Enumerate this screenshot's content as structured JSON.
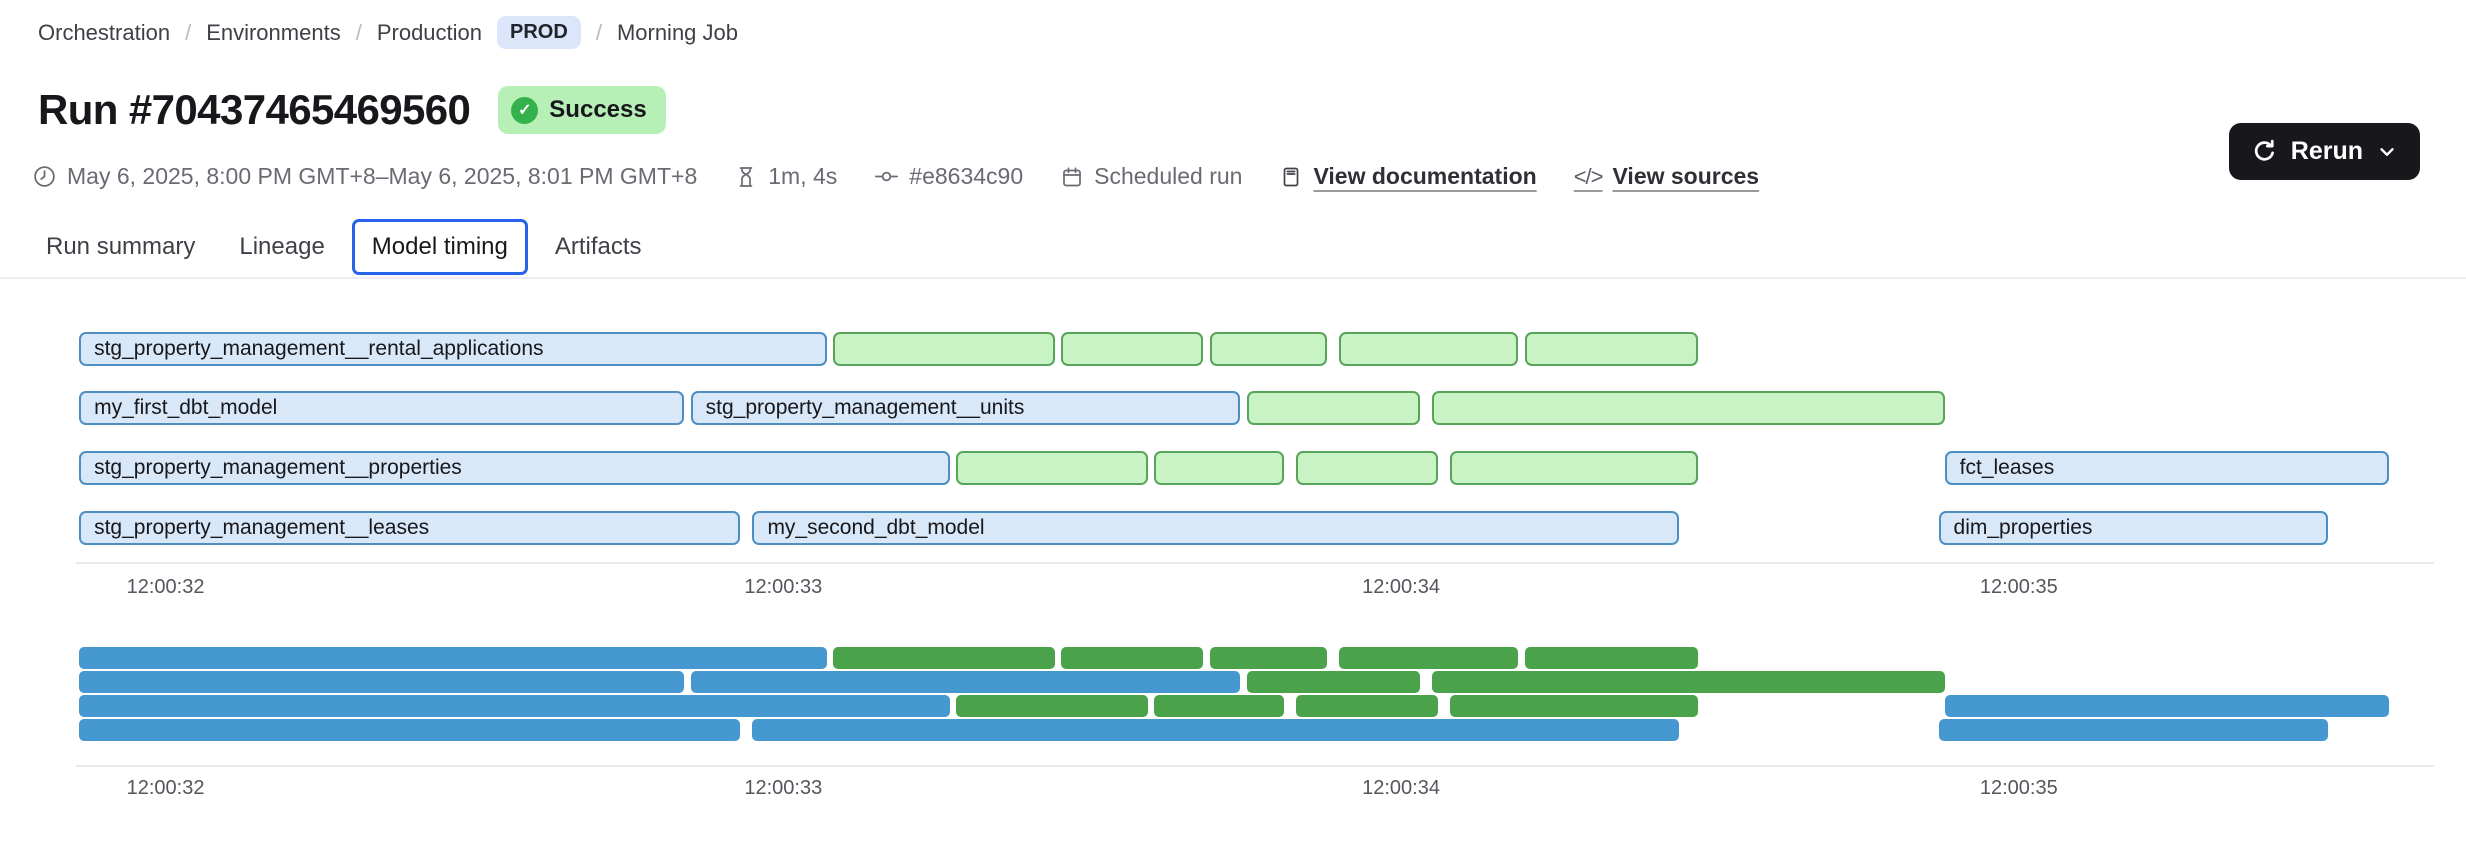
{
  "breadcrumb": {
    "separator": "/",
    "items": [
      "Orchestration",
      "Environments",
      "Production",
      "Morning Job"
    ],
    "env_badge": "PROD"
  },
  "header": {
    "title": "Run #70437465469560",
    "status_badge": "Success",
    "rerun_label": "Rerun"
  },
  "meta": {
    "time_range": "May 6, 2025, 8:00 PM GMT+8–May 6, 2025, 8:01 PM GMT+8",
    "duration": "1m, 4s",
    "commit": "#e8634c90",
    "trigger": "Scheduled run",
    "docs_link": "View documentation",
    "sources_link": "View sources",
    "code_glyph": "</>"
  },
  "tabs": {
    "items": [
      {
        "label": "Run summary",
        "active": false
      },
      {
        "label": "Lineage",
        "active": false
      },
      {
        "label": "Model timing",
        "active": true
      },
      {
        "label": "Artifacts",
        "active": false
      }
    ]
  },
  "colors": {
    "accent_blue": "#2563eb",
    "env_badge_bg": "#dce6fb",
    "success_badge_bg": "#b6f0b6",
    "success_check": "#35b14b",
    "rerun_button_bg": "#17171c",
    "bar_blue_fill": "#d8e8f8",
    "bar_blue_border": "#4d8fc2",
    "bar_green_fill": "#c9f2c5",
    "bar_green_border": "#57a45a",
    "bar_blue_solid": "#4698d0",
    "bar_green_solid": "#4aa24a"
  },
  "chart_data": {
    "type": "gantt",
    "title": "Model timing",
    "time_unit": "seconds after 12:00:00",
    "has_secondary_overview": true,
    "x_axis": {
      "min": 31.855,
      "max": 35.63,
      "ticks": [
        {
          "t": 32,
          "label": "12:00:32"
        },
        {
          "t": 33,
          "label": "12:00:33"
        },
        {
          "t": 34,
          "label": "12:00:34"
        },
        {
          "t": 35,
          "label": "12:00:35"
        }
      ]
    },
    "rows": [
      {
        "bars": [
          {
            "label": "stg_property_management__rental_applications",
            "color": "blue",
            "start": 31.86,
            "end": 33.07
          },
          {
            "color": "green",
            "start": 33.08,
            "end": 33.44
          },
          {
            "color": "green",
            "start": 33.45,
            "end": 33.68
          },
          {
            "color": "green",
            "start": 33.69,
            "end": 33.88
          },
          {
            "color": "green",
            "start": 33.9,
            "end": 34.19
          },
          {
            "color": "green",
            "start": 34.2,
            "end": 34.48
          }
        ]
      },
      {
        "bars": [
          {
            "label": "my_first_dbt_model",
            "color": "blue",
            "start": 31.86,
            "end": 32.84
          },
          {
            "label": "stg_property_management__units",
            "color": "blue",
            "start": 32.85,
            "end": 33.74
          },
          {
            "color": "green",
            "start": 33.75,
            "end": 34.03
          },
          {
            "color": "green",
            "start": 34.05,
            "end": 34.88
          }
        ]
      },
      {
        "bars": [
          {
            "label": "stg_property_management__properties",
            "color": "blue",
            "start": 31.86,
            "end": 33.27
          },
          {
            "color": "green",
            "start": 33.28,
            "end": 33.59
          },
          {
            "color": "green",
            "start": 33.6,
            "end": 33.81
          },
          {
            "color": "green",
            "start": 33.83,
            "end": 34.06
          },
          {
            "color": "green",
            "start": 34.08,
            "end": 34.48
          },
          {
            "label": "fct_leases",
            "color": "blue",
            "start": 34.88,
            "end": 35.6
          }
        ]
      },
      {
        "bars": [
          {
            "label": "stg_property_management__leases",
            "color": "blue",
            "start": 31.86,
            "end": 32.93
          },
          {
            "label": "my_second_dbt_model",
            "color": "blue",
            "start": 32.95,
            "end": 34.45
          },
          {
            "label": "dim_properties",
            "color": "blue",
            "start": 34.87,
            "end": 35.5
          }
        ]
      }
    ]
  }
}
